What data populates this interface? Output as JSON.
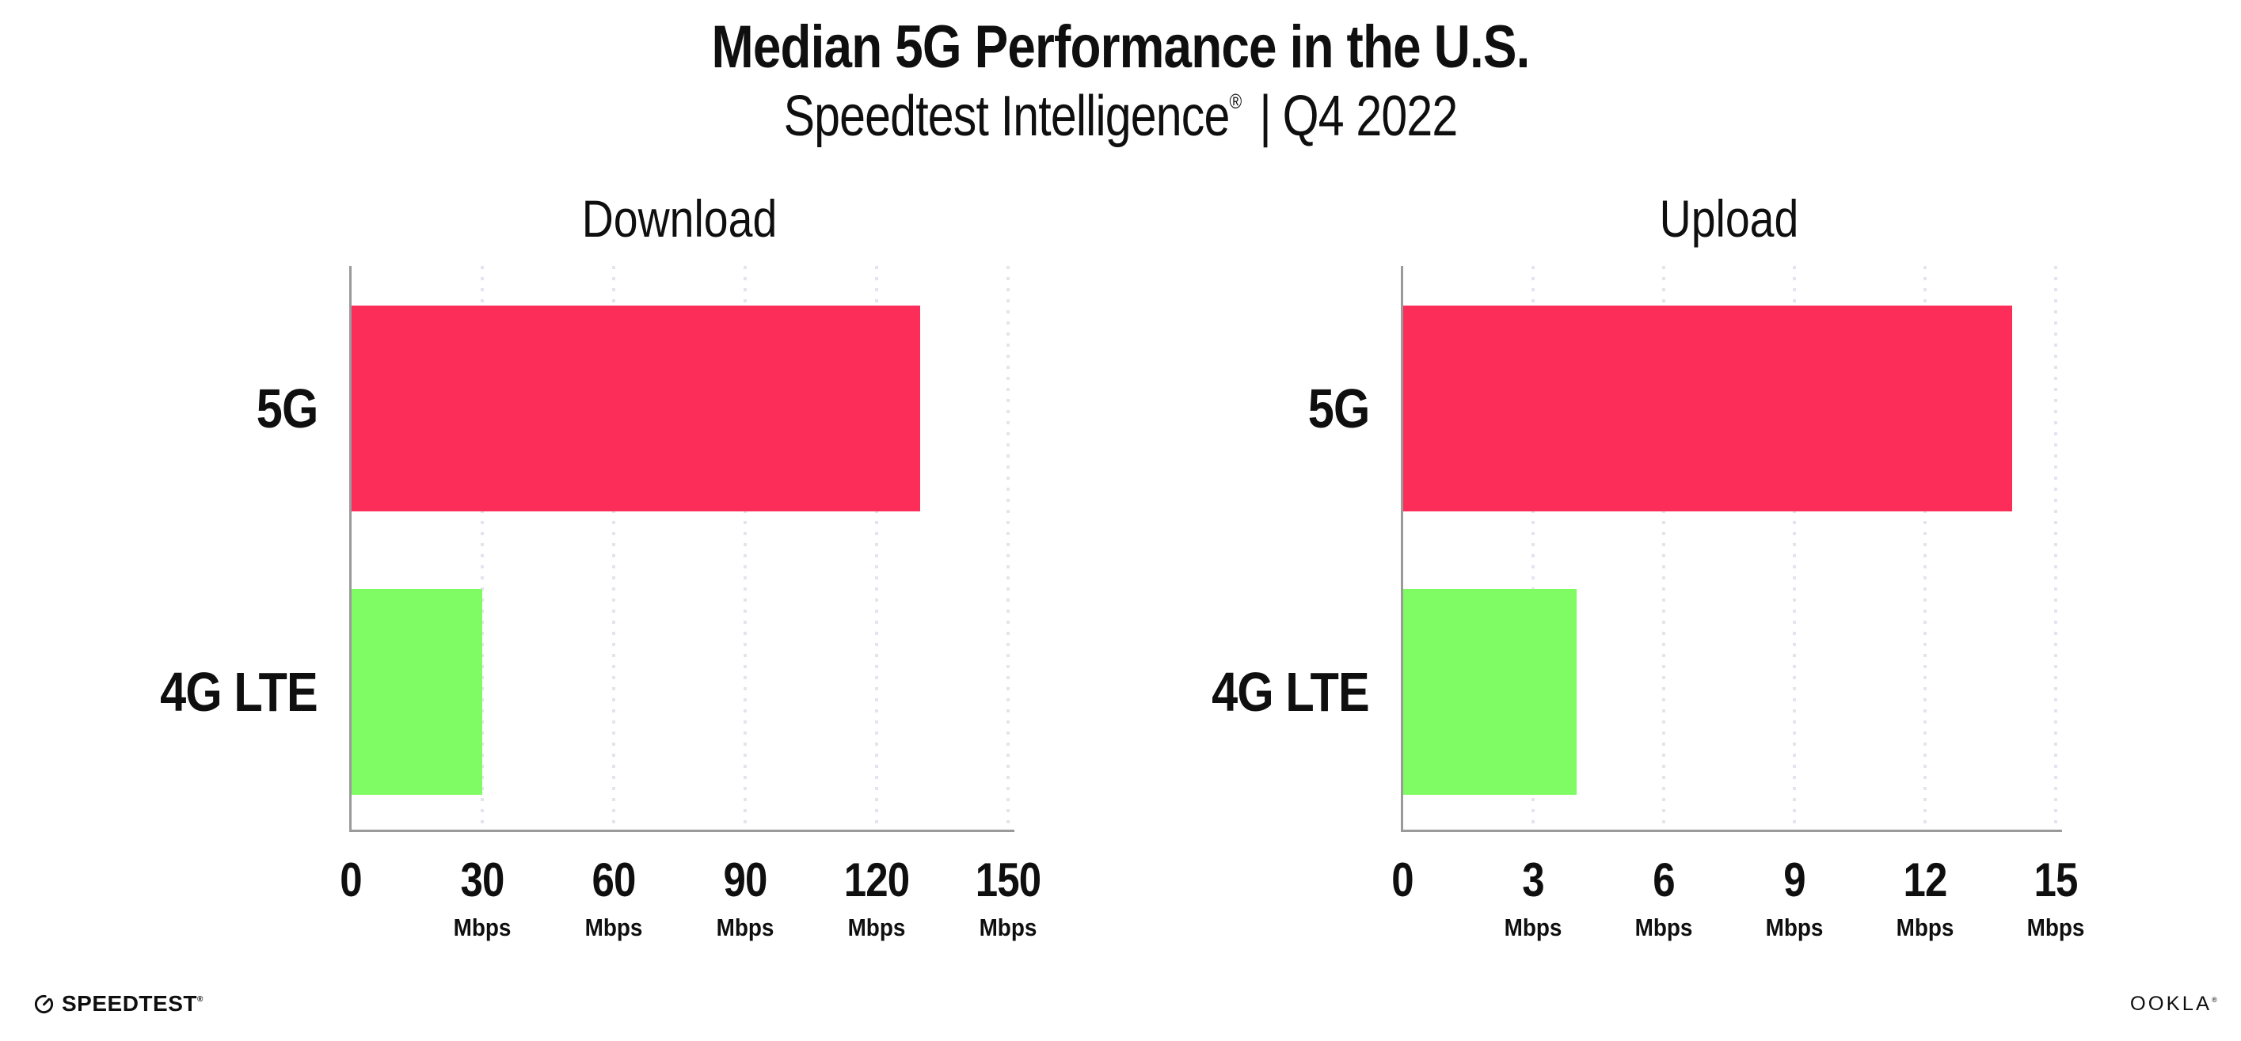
{
  "header": {
    "title": "Median 5G Performance in the U.S.",
    "subtitle_product": "Speedtest Intelligence",
    "subtitle_reg": "®",
    "subtitle_separator": "|",
    "subtitle_period": "Q4 2022"
  },
  "colors": {
    "bar_5g": "#FC2E59",
    "bar_4g_lte": "#7FFC64",
    "axis": "#9A9A9A",
    "gridline": "#E4E4EE",
    "text": "#0F0F0F"
  },
  "chart_data": [
    {
      "type": "bar",
      "orientation": "horizontal",
      "title": "Download",
      "categories": [
        "5G",
        "4G LTE"
      ],
      "values": [
        130,
        30
      ],
      "unit": "Mbps",
      "xlim": [
        0,
        150
      ],
      "grid": "dotted-vertical",
      "legend": "none",
      "bars": [
        {
          "category": "5G",
          "value": 130,
          "color": "#FC2E59"
        },
        {
          "category": "4G LTE",
          "value": 30,
          "color": "#7FFC64"
        }
      ],
      "ticks": [
        {
          "value": 0,
          "label": "0",
          "unit": ""
        },
        {
          "value": 30,
          "label": "30",
          "unit": "Mbps"
        },
        {
          "value": 60,
          "label": "60",
          "unit": "Mbps"
        },
        {
          "value": 90,
          "label": "90",
          "unit": "Mbps"
        },
        {
          "value": 120,
          "label": "120",
          "unit": "Mbps"
        },
        {
          "value": 150,
          "label": "150",
          "unit": "Mbps"
        }
      ]
    },
    {
      "type": "bar",
      "orientation": "horizontal",
      "title": "Upload",
      "categories": [
        "5G",
        "4G LTE"
      ],
      "values": [
        14,
        4
      ],
      "unit": "Mbps",
      "xlim": [
        0,
        15
      ],
      "grid": "dotted-vertical",
      "legend": "none",
      "bars": [
        {
          "category": "5G",
          "value": 14,
          "color": "#FC2E59"
        },
        {
          "category": "4G LTE",
          "value": 4,
          "color": "#7FFC64"
        }
      ],
      "ticks": [
        {
          "value": 0,
          "label": "0",
          "unit": ""
        },
        {
          "value": 3,
          "label": "3",
          "unit": "Mbps"
        },
        {
          "value": 6,
          "label": "6",
          "unit": "Mbps"
        },
        {
          "value": 9,
          "label": "9",
          "unit": "Mbps"
        },
        {
          "value": 12,
          "label": "12",
          "unit": "Mbps"
        },
        {
          "value": 15,
          "label": "15",
          "unit": "Mbps"
        }
      ]
    }
  ],
  "footer": {
    "speedtest_label": "SPEEDTEST",
    "speedtest_reg": "®",
    "ookla_label": "OOKLA",
    "ookla_reg": "®"
  }
}
